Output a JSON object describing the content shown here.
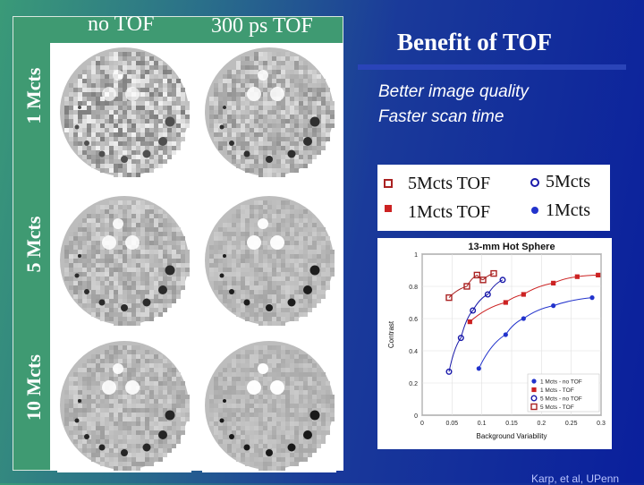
{
  "slide": {
    "title": "Benefit of TOF",
    "bullets": [
      "Better image quality",
      "Faster scan time"
    ],
    "credit": "Karp, et al, UPenn"
  },
  "grid": {
    "col_headers": [
      "no TOF",
      "300 ps TOF"
    ],
    "row_labels": [
      "1 Mcts",
      "5 Mcts",
      "10 Mcts"
    ]
  },
  "legend": {
    "left": [
      "5Mcts TOF",
      "1Mcts TOF"
    ],
    "right": [
      "5Mcts",
      "1Mcts"
    ]
  },
  "chart_data": {
    "type": "scatter",
    "title": "13-mm Hot Sphere",
    "xlabel": "Background Variability",
    "ylabel": "Contrast",
    "xlim": [
      0,
      0.3
    ],
    "ylim": [
      0,
      1
    ],
    "x_ticks": [
      "0",
      "0.05",
      "0.1",
      "0.15",
      "0.2",
      "0.25",
      "0.3"
    ],
    "y_ticks": [
      "0",
      "0.2",
      "0.4",
      "0.6",
      "0.8",
      "1"
    ],
    "legend_placement": "bottom-right",
    "series": [
      {
        "name": "1 Mcts - no TOF",
        "marker": "filled-circle",
        "color": "#2233cc",
        "points": [
          [
            0.095,
            0.29
          ],
          [
            0.14,
            0.5
          ],
          [
            0.17,
            0.6
          ],
          [
            0.22,
            0.68
          ],
          [
            0.285,
            0.73
          ]
        ]
      },
      {
        "name": "1 Mcts - TOF",
        "marker": "filled-square",
        "color": "#cc2222",
        "points": [
          [
            0.08,
            0.58
          ],
          [
            0.14,
            0.7
          ],
          [
            0.17,
            0.75
          ],
          [
            0.22,
            0.82
          ],
          [
            0.26,
            0.86
          ],
          [
            0.295,
            0.87
          ]
        ]
      },
      {
        "name": "5 Mcts - no TOF",
        "marker": "open-circle",
        "color": "#1a1aaa",
        "points": [
          [
            0.045,
            0.27
          ],
          [
            0.065,
            0.48
          ],
          [
            0.085,
            0.65
          ],
          [
            0.11,
            0.75
          ],
          [
            0.135,
            0.84
          ]
        ]
      },
      {
        "name": "5 Mcts - TOF",
        "marker": "open-square",
        "color": "#aa2222",
        "points": [
          [
            0.045,
            0.73
          ],
          [
            0.075,
            0.8
          ],
          [
            0.092,
            0.87
          ],
          [
            0.102,
            0.84
          ],
          [
            0.12,
            0.88
          ]
        ]
      }
    ]
  },
  "colors": {
    "bg_left": "#3a9a78",
    "bg_right": "#0a1f9c",
    "label_panel": "#3f9a72",
    "text": "#ffffff"
  }
}
